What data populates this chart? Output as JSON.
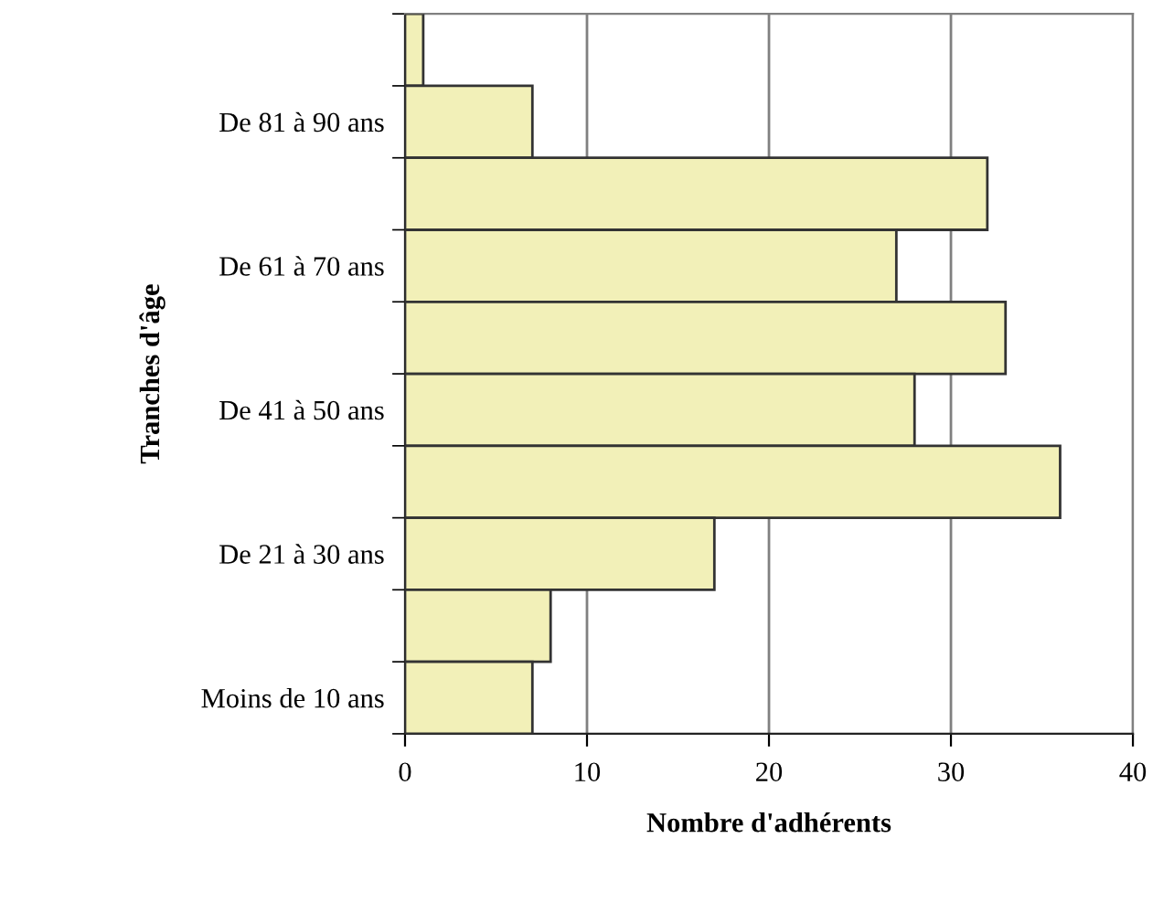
{
  "chart_data": {
    "type": "bar",
    "orientation": "horizontal",
    "xlabel": "Nombre d'adhérents",
    "ylabel": "Tranches d'âge",
    "categories": [
      null,
      "De 81 à 90 ans",
      null,
      "De 61 à 70 ans",
      null,
      "De 41 à 50 ans",
      null,
      "De 21 à 30 ans",
      null,
      "Moins de 10 ans"
    ],
    "values": [
      1,
      7,
      32,
      27,
      33,
      28,
      36,
      17,
      8,
      7
    ],
    "color": "#f2f0b8",
    "xlim": [
      0,
      40
    ],
    "xticks": [
      0,
      10,
      20,
      30,
      40
    ],
    "grid": "x"
  }
}
